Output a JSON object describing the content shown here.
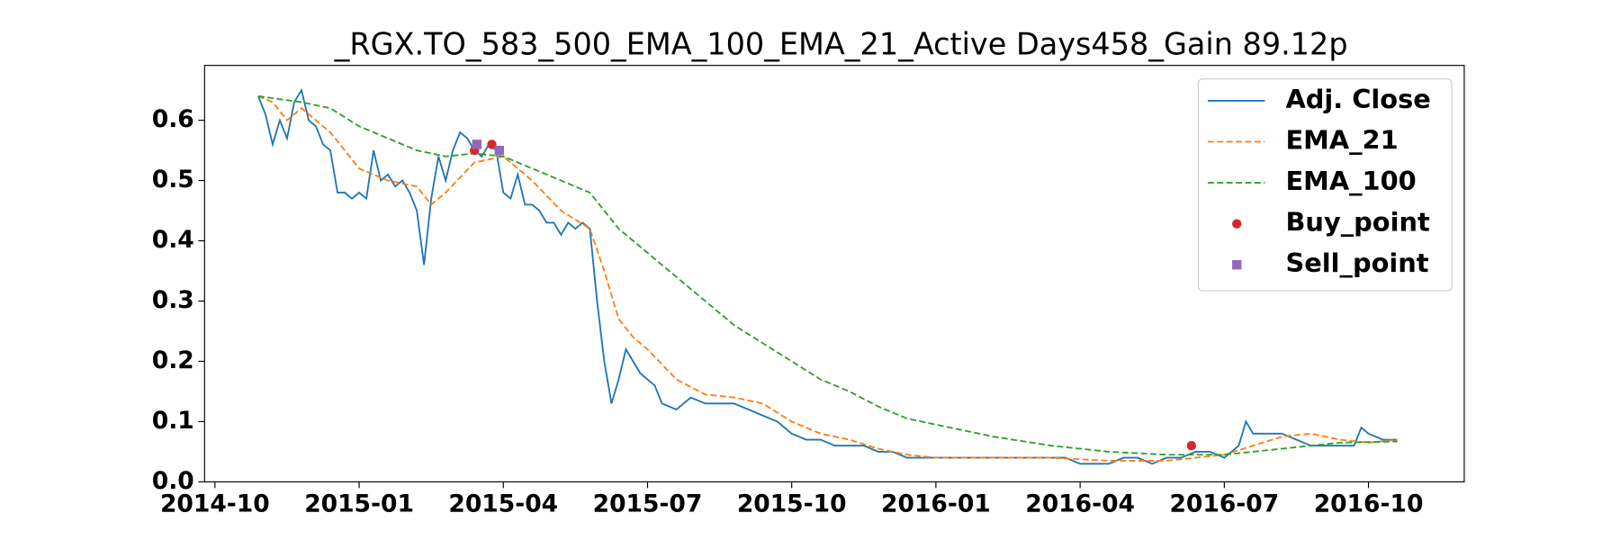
{
  "chart_data": {
    "type": "line",
    "title": "_RGX.TO_583_500_EMA_100_EMA_21_Active Days458_Gain  89.12p",
    "xlim": [
      2014.732,
      2016.916
    ],
    "ylim": [
      0,
      0.691
    ],
    "xticks": [
      {
        "value": 2014.75,
        "label": "2014-10"
      },
      {
        "value": 2015.0,
        "label": "2015-01"
      },
      {
        "value": 2015.25,
        "label": "2015-04"
      },
      {
        "value": 2015.5,
        "label": "2015-07"
      },
      {
        "value": 2015.75,
        "label": "2015-10"
      },
      {
        "value": 2016.0,
        "label": "2016-01"
      },
      {
        "value": 2016.25,
        "label": "2016-04"
      },
      {
        "value": 2016.5,
        "label": "2016-07"
      },
      {
        "value": 2016.75,
        "label": "2016-10"
      }
    ],
    "yticks": [
      {
        "value": 0,
        "label": "0.0"
      },
      {
        "value": 0.1,
        "label": "0.1"
      },
      {
        "value": 0.2,
        "label": "0.2"
      },
      {
        "value": 0.3,
        "label": "0.3"
      },
      {
        "value": 0.4,
        "label": "0.4"
      },
      {
        "value": 0.5,
        "label": "0.5"
      },
      {
        "value": 0.6,
        "label": "0.6"
      }
    ],
    "legend": "upper right",
    "series": [
      {
        "name": "Adj. Close",
        "color": "#1f77b4",
        "linestyle": "solid",
        "x": [
          2014.825,
          2014.8375,
          2014.85,
          2014.8625,
          2014.875,
          2014.8875,
          2014.9,
          2014.9125,
          2014.925,
          2014.9375,
          2014.95,
          2014.9625,
          2014.975,
          2014.9875,
          2015.0,
          2015.0125,
          2015.025,
          2015.0375,
          2015.05,
          2015.0625,
          2015.075,
          2015.0875,
          2015.1,
          2015.1125,
          2015.125,
          2015.1375,
          2015.15,
          2015.1625,
          2015.175,
          2015.1875,
          2015.2,
          2015.2125,
          2015.225,
          2015.2375,
          2015.25,
          2015.2625,
          2015.275,
          2015.2875,
          2015.3,
          2015.3125,
          2015.325,
          2015.3375,
          2015.35,
          2015.3625,
          2015.375,
          2015.3875,
          2015.4,
          2015.4125,
          2015.425,
          2015.4375,
          2015.45,
          2015.4625,
          2015.475,
          2015.4875,
          2015.5,
          2015.5125,
          2015.525,
          2015.55,
          2015.575,
          2015.6,
          2015.625,
          2015.65,
          2015.675,
          2015.7,
          2015.725,
          2015.75,
          2015.775,
          2015.8,
          2015.825,
          2015.85,
          2015.875,
          2015.9,
          2015.925,
          2015.95,
          2015.975,
          2016.0,
          2016.025,
          2016.05,
          2016.075,
          2016.1,
          2016.125,
          2016.15,
          2016.175,
          2016.2,
          2016.225,
          2016.25,
          2016.275,
          2016.3,
          2016.325,
          2016.35,
          2016.375,
          2016.4,
          2016.425,
          2016.45,
          2016.475,
          2016.5,
          2016.525,
          2016.5375,
          2016.55,
          2016.575,
          2016.6,
          2016.625,
          2016.65,
          2016.675,
          2016.7,
          2016.725,
          2016.7375,
          2016.75,
          2016.775,
          2016.8
        ],
        "values": [
          0.64,
          0.61,
          0.56,
          0.6,
          0.57,
          0.63,
          0.65,
          0.6,
          0.59,
          0.56,
          0.55,
          0.48,
          0.48,
          0.47,
          0.48,
          0.47,
          0.55,
          0.5,
          0.51,
          0.49,
          0.5,
          0.48,
          0.45,
          0.36,
          0.47,
          0.54,
          0.5,
          0.55,
          0.58,
          0.57,
          0.55,
          0.54,
          0.56,
          0.55,
          0.48,
          0.47,
          0.51,
          0.46,
          0.46,
          0.45,
          0.43,
          0.43,
          0.41,
          0.43,
          0.42,
          0.43,
          0.42,
          0.3,
          0.2,
          0.13,
          0.17,
          0.22,
          0.2,
          0.18,
          0.17,
          0.16,
          0.13,
          0.12,
          0.14,
          0.13,
          0.13,
          0.13,
          0.12,
          0.11,
          0.1,
          0.08,
          0.07,
          0.07,
          0.06,
          0.06,
          0.06,
          0.05,
          0.05,
          0.04,
          0.04,
          0.04,
          0.04,
          0.04,
          0.04,
          0.04,
          0.04,
          0.04,
          0.04,
          0.04,
          0.04,
          0.03,
          0.03,
          0.03,
          0.04,
          0.04,
          0.03,
          0.04,
          0.04,
          0.05,
          0.05,
          0.04,
          0.06,
          0.1,
          0.08,
          0.08,
          0.08,
          0.07,
          0.06,
          0.06,
          0.06,
          0.06,
          0.09,
          0.08,
          0.07,
          0.07
        ]
      },
      {
        "name": "EMA_21",
        "color": "#ff7f0e",
        "linestyle": "dashed",
        "x": [
          2014.825,
          2014.85,
          2014.875,
          2014.9,
          2014.95,
          2015.0,
          2015.05,
          2015.1,
          2015.125,
          2015.15,
          2015.2,
          2015.25,
          2015.3,
          2015.35,
          2015.4,
          2015.425,
          2015.45,
          2015.475,
          2015.5,
          2015.55,
          2015.6,
          2015.65,
          2015.7,
          2015.75,
          2015.8,
          2015.85,
          2015.9,
          2015.95,
          2016.0,
          2016.1,
          2016.2,
          2016.3,
          2016.4,
          2016.45,
          2016.5,
          2016.55,
          2016.6,
          2016.65,
          2016.7,
          2016.75,
          2016.8
        ],
        "values": [
          0.64,
          0.63,
          0.6,
          0.62,
          0.58,
          0.52,
          0.5,
          0.49,
          0.46,
          0.48,
          0.53,
          0.54,
          0.5,
          0.45,
          0.42,
          0.35,
          0.27,
          0.24,
          0.22,
          0.17,
          0.145,
          0.14,
          0.13,
          0.1,
          0.08,
          0.07,
          0.055,
          0.045,
          0.04,
          0.04,
          0.04,
          0.035,
          0.035,
          0.04,
          0.045,
          0.06,
          0.075,
          0.08,
          0.07,
          0.065,
          0.07
        ]
      },
      {
        "name": "EMA_100",
        "color": "#2ca02c",
        "linestyle": "dashed",
        "x": [
          2014.825,
          2014.9,
          2014.95,
          2015.0,
          2015.05,
          2015.1,
          2015.15,
          2015.2,
          2015.25,
          2015.3,
          2015.35,
          2015.4,
          2015.45,
          2015.5,
          2015.55,
          2015.6,
          2015.65,
          2015.7,
          2015.75,
          2015.8,
          2015.85,
          2015.9,
          2015.95,
          2016.0,
          2016.1,
          2016.2,
          2016.3,
          2016.4,
          2016.45,
          2016.5,
          2016.6,
          2016.7,
          2016.8
        ],
        "values": [
          0.64,
          0.63,
          0.62,
          0.59,
          0.57,
          0.55,
          0.54,
          0.545,
          0.54,
          0.52,
          0.5,
          0.48,
          0.42,
          0.38,
          0.34,
          0.3,
          0.26,
          0.23,
          0.2,
          0.17,
          0.15,
          0.125,
          0.105,
          0.095,
          0.075,
          0.06,
          0.05,
          0.045,
          0.045,
          0.045,
          0.055,
          0.065,
          0.067
        ]
      },
      {
        "name": "Buy_point",
        "color": "#d62728",
        "marker": "circle",
        "x": [
          2015.2,
          2015.23,
          2016.443
        ],
        "values": [
          0.55,
          0.56,
          0.06
        ]
      },
      {
        "name": "Sell_point",
        "color": "#9467bd",
        "marker": "square",
        "x": [
          2015.204,
          2015.243
        ],
        "values": [
          0.56,
          0.55
        ]
      }
    ]
  }
}
